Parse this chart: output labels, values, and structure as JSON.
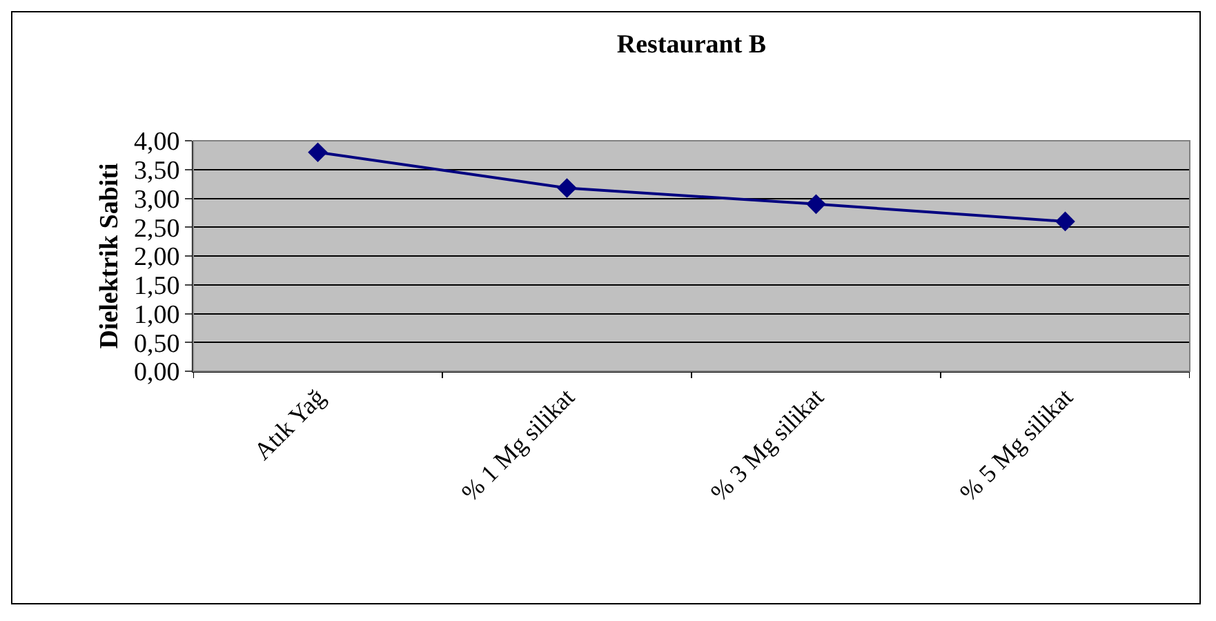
{
  "chart_data": {
    "type": "line",
    "title": "Restaurant B",
    "ylabel": "Dielektrik Sabiti",
    "categories": [
      "Atık Yağ",
      "% 1 Mg silikat",
      "% 3 Mg silikat",
      "% 5 Mg silikat"
    ],
    "series": [
      {
        "color": "#000080",
        "values": [
          3.8,
          3.18,
          2.9,
          2.6
        ]
      }
    ],
    "ylim": [
      0,
      4
    ],
    "yticks": [
      {
        "value": 0,
        "label": "0,00"
      },
      {
        "value": 0.5,
        "label": "0,50"
      },
      {
        "value": 1,
        "label": "1,00"
      },
      {
        "value": 1.5,
        "label": "1,50"
      },
      {
        "value": 2,
        "label": "2,00"
      },
      {
        "value": 2.5,
        "label": "2,50"
      },
      {
        "value": 3,
        "label": "3,00"
      },
      {
        "value": 3.5,
        "label": "3,50"
      },
      {
        "value": 4,
        "label": "4,00"
      }
    ],
    "grid": "y",
    "marker": "diamond",
    "line_style": "solid"
  }
}
